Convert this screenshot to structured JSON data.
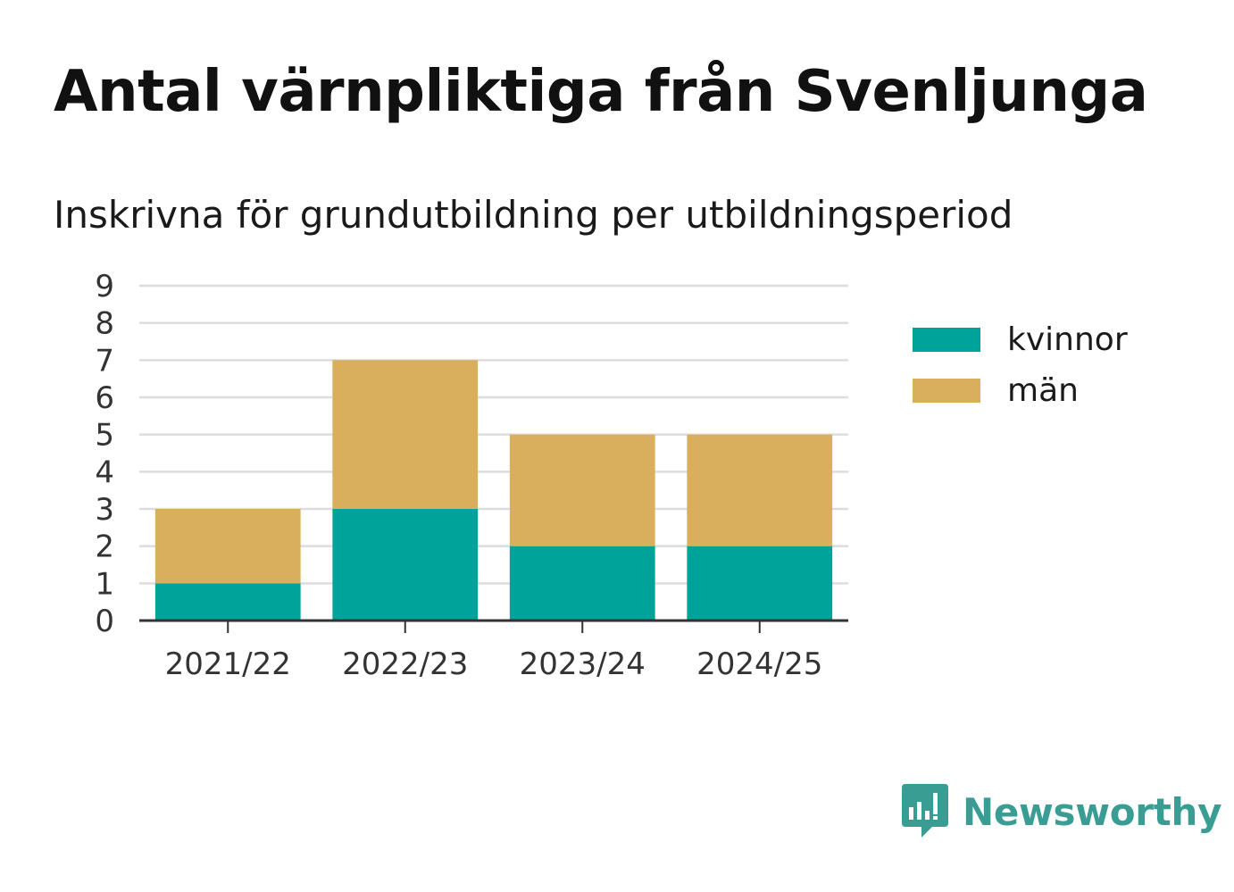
{
  "chart_data": {
    "type": "bar",
    "stacked": true,
    "title": "Antal värnpliktiga från Svenljunga",
    "subtitle": "Inskrivna för grundutbildning per utbildningsperiod",
    "categories": [
      "2021/22",
      "2022/23",
      "2023/24",
      "2024/25"
    ],
    "series": [
      {
        "name": "kvinnor",
        "values": [
          1,
          3,
          2,
          2
        ],
        "color": "#00a39a"
      },
      {
        "name": "män",
        "values": [
          2,
          4,
          3,
          3
        ],
        "color": "#d9ae5d"
      }
    ],
    "ylim": [
      0,
      9
    ],
    "yticks": [
      "0",
      "1",
      "2",
      "3",
      "4",
      "5",
      "6",
      "7",
      "8",
      "9"
    ],
    "grid": true,
    "legend_position": "right-top"
  },
  "brand": {
    "name": "Newsworthy",
    "icon": "newsworthy-logo-icon",
    "color": "#3a9d94"
  }
}
